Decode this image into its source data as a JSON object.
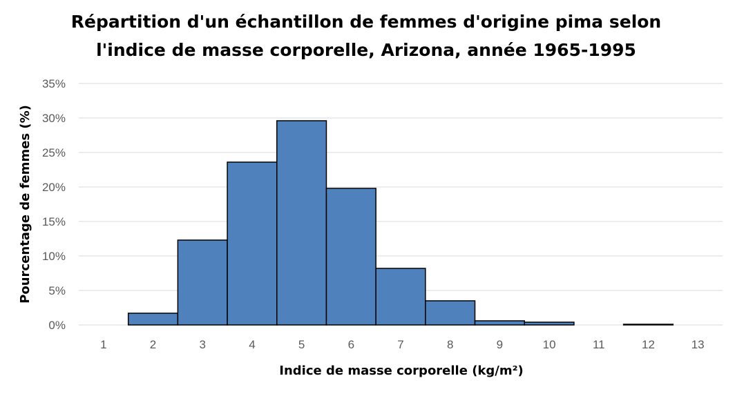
{
  "chart_data": {
    "type": "bar",
    "title_lines": [
      "Répartition d'un échantillon de femmes d'origine pima selon",
      "l'indice de masse corporelle, Arizona, année 1965-1995"
    ],
    "xlabel": "Indice de masse corporelle (kg/m²)",
    "ylabel": "Pourcentage de femmes (%)",
    "categories": [
      "1",
      "2",
      "3",
      "4",
      "5",
      "6",
      "7",
      "8",
      "9",
      "10",
      "11",
      "12",
      "13"
    ],
    "values": [
      0,
      1.7,
      12.3,
      23.6,
      29.6,
      19.8,
      8.2,
      3.5,
      0.6,
      0.4,
      0,
      0.1,
      0
    ],
    "ylim": [
      0,
      35
    ],
    "yticks": [
      0,
      5,
      10,
      15,
      20,
      25,
      30,
      35
    ],
    "ytick_labels": [
      "0%",
      "5%",
      "10%",
      "15%",
      "20%",
      "25%",
      "30%",
      "35%"
    ],
    "bar_color": "#4f81bd",
    "bar_edge_color": "#000000",
    "grid": true,
    "legend": "none"
  }
}
